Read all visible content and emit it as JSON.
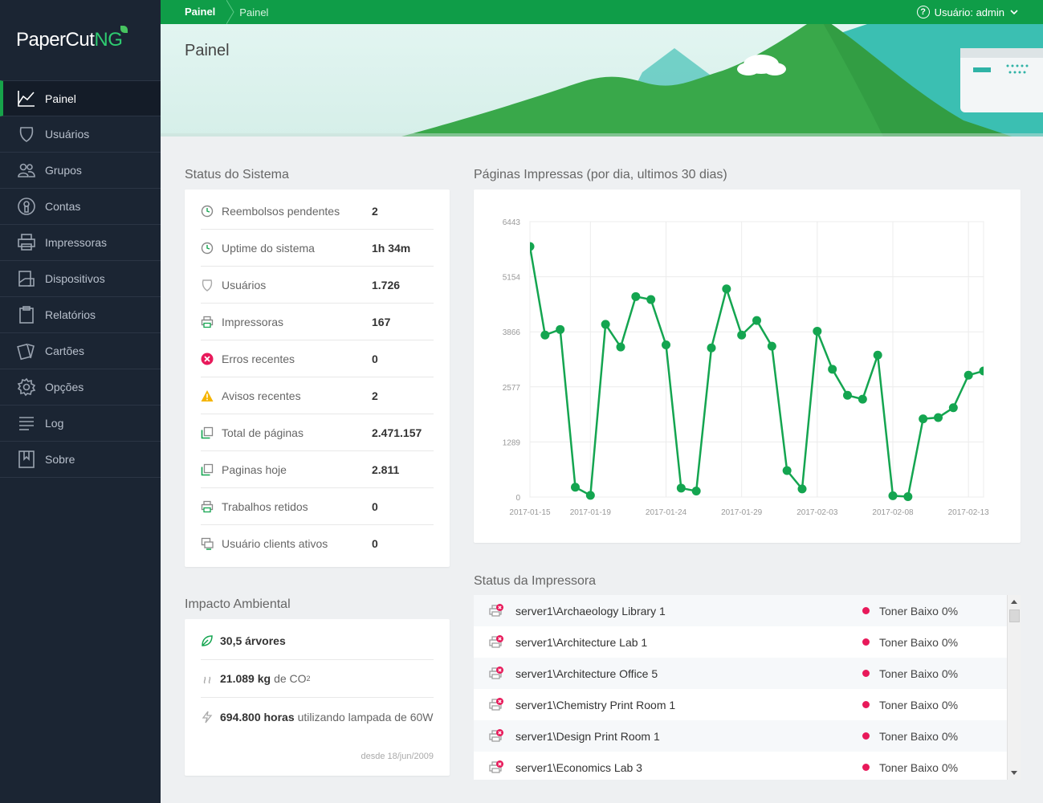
{
  "app": {
    "logo_main": "PaperCut",
    "logo_suffix": "NG"
  },
  "nav": [
    {
      "label": "Painel",
      "icon": "chart-line-icon",
      "active": true
    },
    {
      "label": "Usuários",
      "icon": "user-shield-icon"
    },
    {
      "label": "Grupos",
      "icon": "group-icon"
    },
    {
      "label": "Contas",
      "icon": "account-icon"
    },
    {
      "label": "Impressoras",
      "icon": "printer-icon"
    },
    {
      "label": "Dispositivos",
      "icon": "device-icon"
    },
    {
      "label": "Relatórios",
      "icon": "clipboard-icon"
    },
    {
      "label": "Cartões",
      "icon": "cards-icon"
    },
    {
      "label": "Opções",
      "icon": "gear-icon"
    },
    {
      "label": "Log",
      "icon": "list-icon"
    },
    {
      "label": "Sobre",
      "icon": "bookmark-icon"
    }
  ],
  "topbar": {
    "crumb_root": "Painel",
    "crumb_current": "Painel",
    "user_label": "Usuário: admin"
  },
  "page": {
    "title": "Painel"
  },
  "system_status": {
    "title": "Status do Sistema",
    "rows": [
      {
        "label": "Reembolsos pendentes",
        "value": "2",
        "icon": "clock-icon"
      },
      {
        "label": "Uptime do sistema",
        "value": "1h 34m",
        "icon": "clock-icon"
      },
      {
        "label": "Usuários",
        "value": "1.726",
        "icon": "user-icon"
      },
      {
        "label": "Impressoras",
        "value": "167",
        "icon": "printer-icon"
      },
      {
        "label": "Erros recentes",
        "value": "0",
        "icon": "error-icon"
      },
      {
        "label": "Avisos recentes",
        "value": "2",
        "icon": "warning-icon"
      },
      {
        "label": "Total de páginas",
        "value": "2.471.157",
        "icon": "pages-icon"
      },
      {
        "label": "Paginas hoje",
        "value": "2.811",
        "icon": "pages-icon"
      },
      {
        "label": "Trabalhos retidos",
        "value": "0",
        "icon": "printer-icon"
      },
      {
        "label": "Usuário clients ativos",
        "value": "0",
        "icon": "monitor-icon"
      }
    ]
  },
  "environment": {
    "title": "Impacto Ambiental",
    "trees_value": "30,5 árvores",
    "co2_value": "21.089 kg",
    "co2_suffix": "de CO",
    "co2_sub": "2",
    "energy_value": "694.800 horas",
    "energy_suffix": "utilizando lampada de 60W",
    "since": "desde 18/jun/2009"
  },
  "chart_data": {
    "type": "line",
    "title": "Páginas Impressas (por dia, ultimos 30 dias)",
    "x": [
      "2017-01-15",
      "2017-01-16",
      "2017-01-17",
      "2017-01-18",
      "2017-01-19",
      "2017-01-20",
      "2017-01-21",
      "2017-01-22",
      "2017-01-23",
      "2017-01-24",
      "2017-01-25",
      "2017-01-26",
      "2017-01-27",
      "2017-01-28",
      "2017-01-29",
      "2017-01-30",
      "2017-01-31",
      "2017-02-01",
      "2017-02-02",
      "2017-02-03",
      "2017-02-04",
      "2017-02-05",
      "2017-02-06",
      "2017-02-07",
      "2017-02-08",
      "2017-02-09",
      "2017-02-10",
      "2017-02-11",
      "2017-02-12",
      "2017-02-13",
      "2017-02-14"
    ],
    "series": [
      {
        "values": [
          5860,
          3790,
          3920,
          230,
          40,
          4040,
          3510,
          4690,
          4620,
          3560,
          210,
          140,
          3490,
          4870,
          3790,
          4130,
          3530,
          620,
          190,
          3880,
          2990,
          2380,
          2290,
          3320,
          30,
          10,
          1830,
          1860,
          2090,
          2850,
          2950
        ],
        "color": "#14a550"
      }
    ],
    "xticks": [
      "2017-01-15",
      "2017-01-19",
      "2017-01-24",
      "2017-01-29",
      "2017-02-03",
      "2017-02-08",
      "2017-02-13"
    ],
    "yticks": [
      0,
      1289,
      2577,
      3866,
      5154,
      6443
    ],
    "ylim": [
      0,
      6443
    ],
    "grid": true
  },
  "printer_status": {
    "title": "Status da Impressora",
    "rows": [
      {
        "name": "server1\\Archaeology Library 1",
        "status": "Toner Baixo 0%"
      },
      {
        "name": "server1\\Architecture Lab 1",
        "status": "Toner Baixo 0%"
      },
      {
        "name": "server1\\Architecture Office 5",
        "status": "Toner Baixo 0%"
      },
      {
        "name": "server1\\Chemistry Print Room 1",
        "status": "Toner Baixo 0%"
      },
      {
        "name": "server1\\Design Print Room 1",
        "status": "Toner Baixo 0%"
      },
      {
        "name": "server1\\Economics Lab 3",
        "status": "Toner Baixo 0%"
      }
    ]
  }
}
